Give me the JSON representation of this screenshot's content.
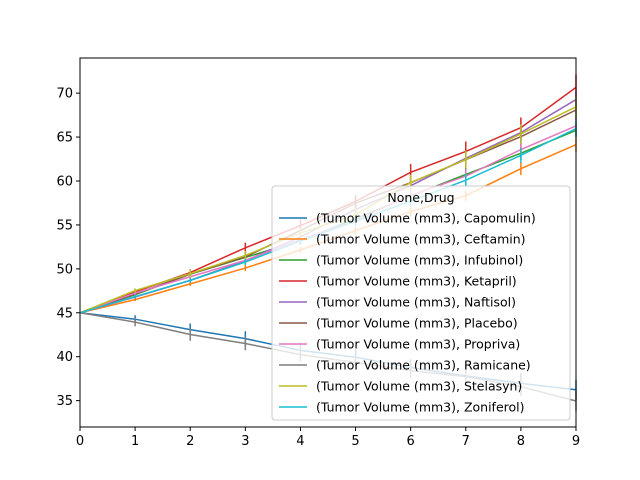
{
  "chart_data": {
    "type": "line",
    "x": [
      0,
      1,
      2,
      3,
      4,
      5,
      6,
      7,
      8,
      9
    ],
    "xlim": [
      0,
      9
    ],
    "ylim": [
      32,
      74
    ],
    "xticks": [
      "0",
      "1",
      "2",
      "3",
      "4",
      "5",
      "6",
      "7",
      "8",
      "9"
    ],
    "yticks": [
      "35",
      "40",
      "45",
      "50",
      "55",
      "60",
      "65",
      "70"
    ],
    "ytick_values": [
      35,
      40,
      45,
      50,
      55,
      60,
      65,
      70
    ],
    "legend": {
      "title": "None,Drug",
      "placement": "lower-right"
    },
    "grid": false,
    "series": [
      {
        "name": "(Tumor Volume (mm3), Capomulin)",
        "color": "#1f77b4",
        "values": [
          45.0,
          44.27,
          43.08,
          42.06,
          40.72,
          39.94,
          38.77,
          37.82,
          36.96,
          36.24
        ],
        "errors": [
          0,
          0.45,
          0.7,
          0.84,
          0.91,
          0.89,
          0.94,
          1.13,
          1.16,
          1.12
        ]
      },
      {
        "name": "(Tumor Volume (mm3), Ceftamin)",
        "color": "#ff7f0e",
        "values": [
          45.0,
          46.5,
          48.29,
          50.09,
          52.16,
          54.36,
          56.52,
          58.33,
          61.4,
          64.13
        ],
        "errors": [
          0,
          0.16,
          0.24,
          0.33,
          0.36,
          0.44,
          0.53,
          0.62,
          0.74,
          0.8
        ]
      },
      {
        "name": "(Tumor Volume (mm3), Infubinol)",
        "color": "#2ca02c",
        "values": [
          45.0,
          47.06,
          49.4,
          51.3,
          53.2,
          55.72,
          58.3,
          60.74,
          63.16,
          65.76
        ],
        "errors": [
          0,
          0.24,
          0.28,
          0.36,
          0.44,
          0.5,
          0.57,
          0.66,
          0.73,
          0.79
        ]
      },
      {
        "name": "(Tumor Volume (mm3), Ketapril)",
        "color": "#d62728",
        "values": [
          45.0,
          47.39,
          49.58,
          52.4,
          54.92,
          57.68,
          60.99,
          63.37,
          66.07,
          70.66
        ],
        "errors": [
          0,
          0.26,
          0.36,
          0.58,
          0.73,
          0.76,
          0.93,
          1.13,
          1.16,
          1.45
        ]
      },
      {
        "name": "(Tumor Volume (mm3), Naftisol)",
        "color": "#9467bd",
        "values": [
          45.0,
          46.8,
          48.69,
          50.93,
          53.64,
          56.76,
          59.47,
          62.58,
          65.52,
          69.27
        ],
        "errors": [
          0,
          0.2,
          0.27,
          0.35,
          0.46,
          0.59,
          0.71,
          0.8,
          0.88,
          0.96
        ]
      },
      {
        "name": "(Tumor Volume (mm3), Placebo)",
        "color": "#8c564b",
        "values": [
          45.0,
          47.13,
          49.42,
          51.36,
          54.36,
          57.48,
          59.81,
          62.42,
          65.05,
          68.08
        ],
        "errors": [
          0,
          0.22,
          0.4,
          0.61,
          0.84,
          0.89,
          0.98,
          1.03,
          1.1,
          1.14
        ]
      },
      {
        "name": "(Tumor Volume (mm3), Propriva)",
        "color": "#e377c2",
        "values": [
          45.0,
          47.25,
          49.1,
          50.97,
          53.34,
          55.5,
          58.39,
          60.55,
          63.58,
          66.27
        ],
        "errors": [
          0,
          0.24,
          0.38,
          0.47,
          0.55,
          0.58,
          0.67,
          0.79,
          0.87,
          0.9
        ]
      },
      {
        "name": "(Tumor Volume (mm3), Ramicane)",
        "color": "#7f7f7f",
        "values": [
          45.0,
          43.94,
          42.53,
          41.5,
          40.24,
          39.34,
          38.42,
          37.74,
          36.59,
          34.96
        ],
        "errors": [
          0,
          0.48,
          0.72,
          0.77,
          0.79,
          0.81,
          0.83,
          0.83,
          1.07,
          1.14
        ]
      },
      {
        "name": "(Tumor Volume (mm3), Stelasyn)",
        "color": "#bcbd22",
        "values": [
          45.0,
          47.53,
          49.46,
          51.53,
          54.07,
          56.17,
          59.83,
          62.44,
          65.36,
          68.44
        ],
        "errors": [
          0,
          0.24,
          0.43,
          0.5,
          0.62,
          0.74,
          0.9,
          1.0,
          1.1,
          1.15
        ]
      },
      {
        "name": "(Tumor Volume (mm3), Zoniferol)",
        "color": "#17becf",
        "values": [
          45.0,
          46.85,
          48.69,
          50.78,
          53.17,
          55.43,
          57.71,
          60.09,
          62.92,
          65.96
        ],
        "errors": [
          0,
          0.19,
          0.26,
          0.35,
          0.44,
          0.56,
          0.63,
          0.72,
          0.83,
          0.93
        ]
      }
    ]
  }
}
